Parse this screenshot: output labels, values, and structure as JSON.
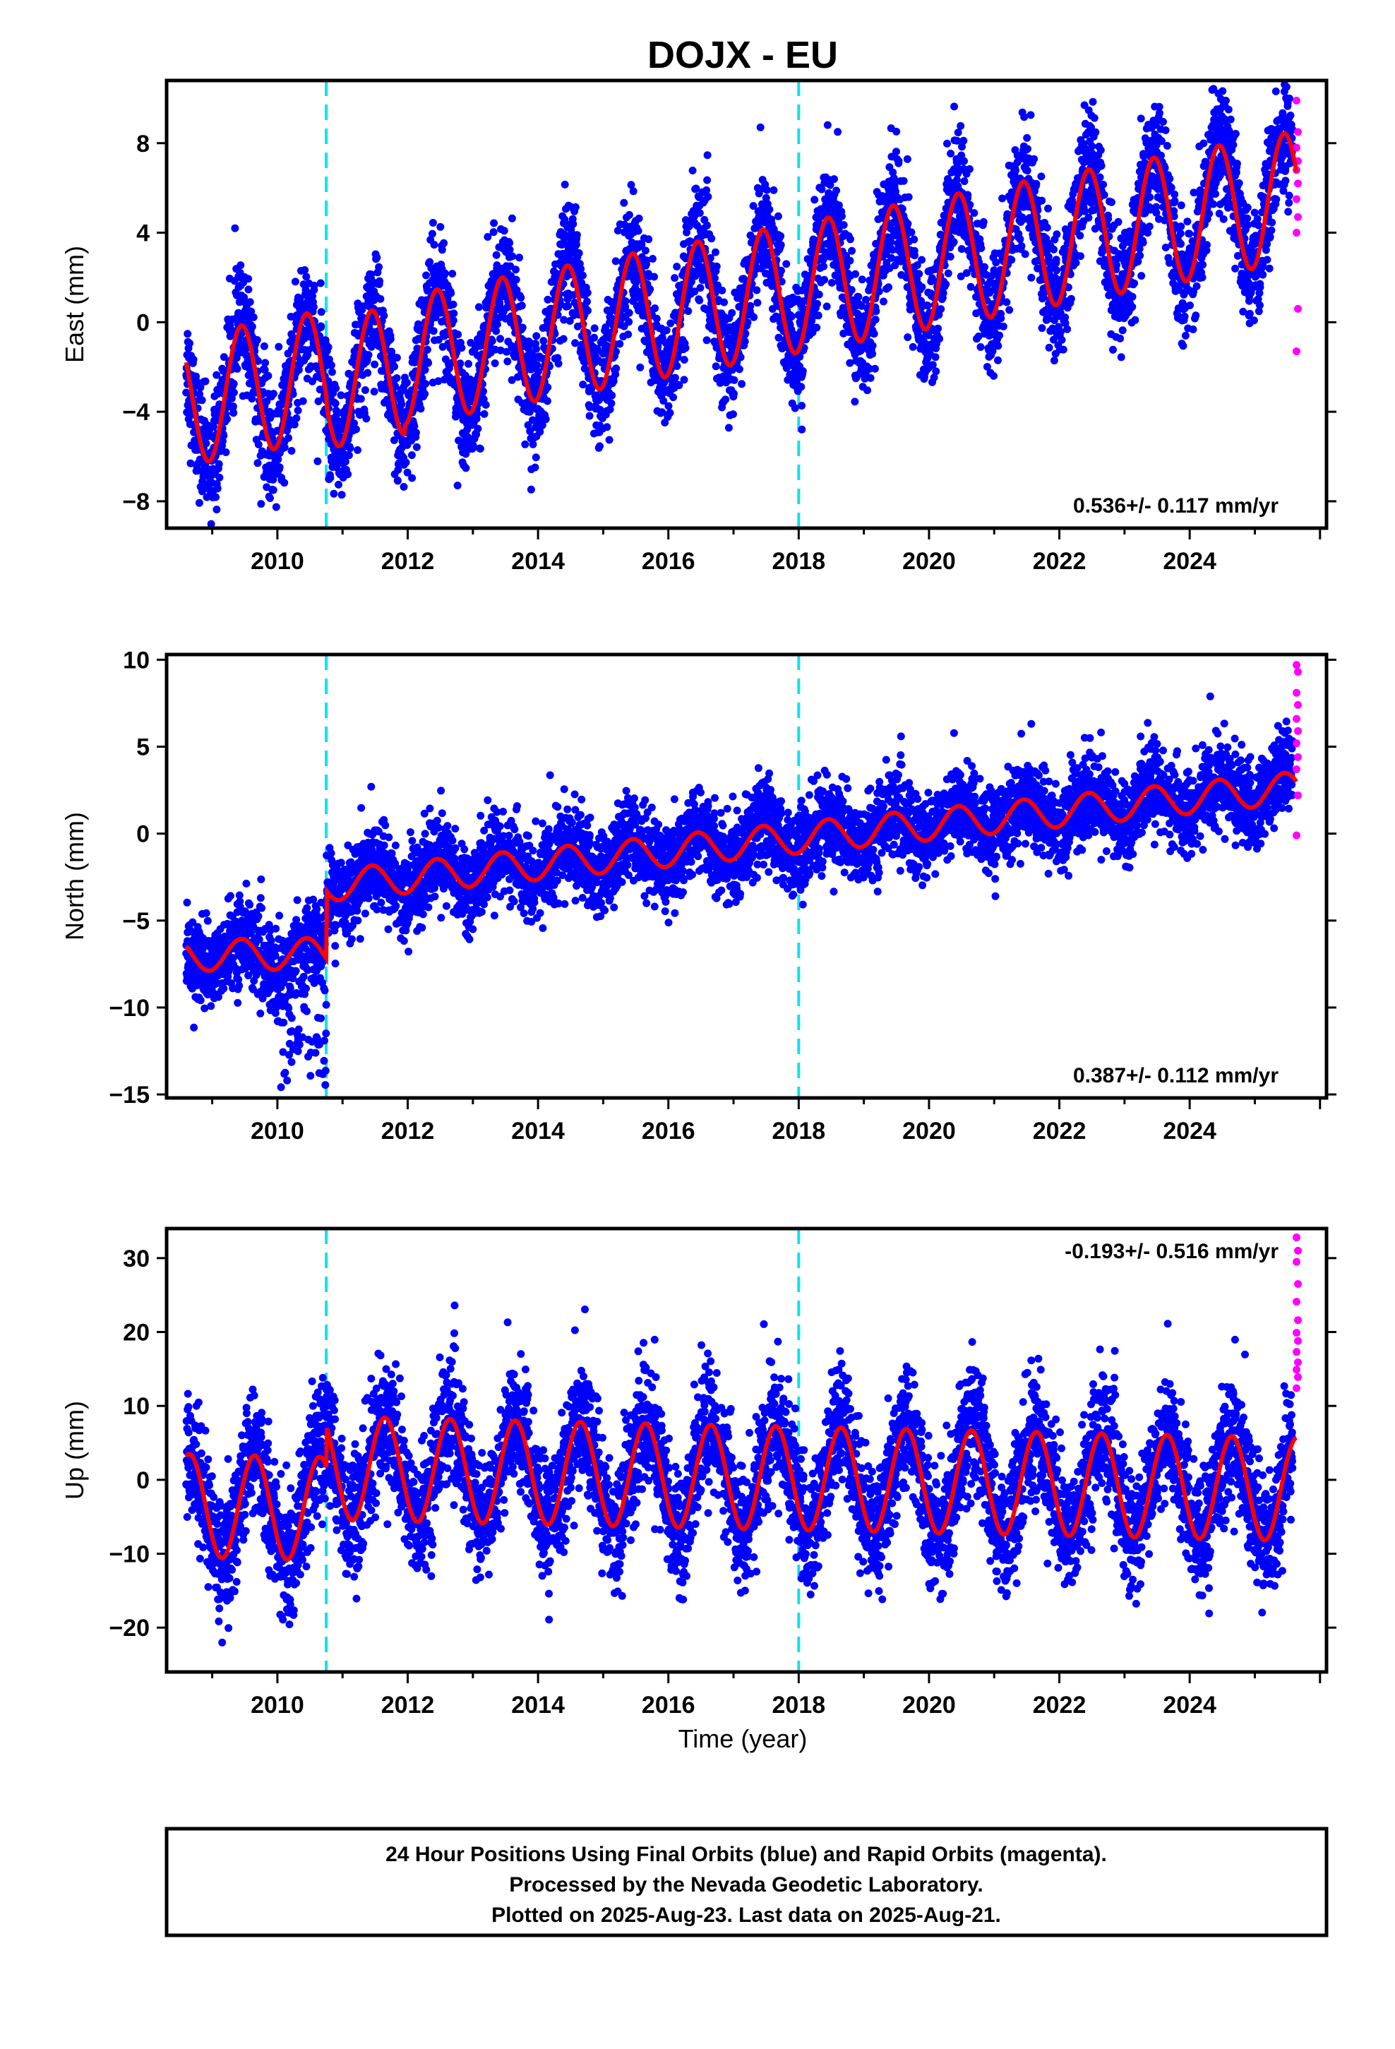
{
  "colors": {
    "final_points": "#0000ff",
    "rapid_points": "#ff00ff",
    "model": "#ff0000",
    "offset_lines": "#00e5ee",
    "frame": "#000000"
  },
  "chart_data": {
    "title": "DOJX - EU",
    "xlabel": "Time (year)",
    "x_ticks": [
      2010,
      2012,
      2014,
      2016,
      2018,
      2020,
      2022,
      2024
    ],
    "xlim": [
      2008.3,
      2026.1
    ],
    "offsets": [
      2010.75,
      2018.0
    ],
    "data_start": 2008.6,
    "data_end": 2025.64,
    "final_end": 2025.58,
    "panels": [
      {
        "type": "scatter",
        "name": "east",
        "ylabel": "East (mm)",
        "ylim": [
          -9.2,
          10.8
        ],
        "yticks": [
          -8,
          -4,
          0,
          4,
          8
        ],
        "rate_text": "0.536+/- 0.117 mm/yr",
        "rate_position": "bottom-right",
        "model": {
          "base": -3.5,
          "trend": 0.536,
          "amplitude": 2.9,
          "period": 1.0,
          "phase_peak": 2009.45,
          "scatter": 1.3
        },
        "rapid_values": [
          9.9,
          8.5,
          7.8,
          7.2,
          6.8,
          6.2,
          5.5,
          4.7,
          4.0,
          0.6,
          -1.3
        ]
      },
      {
        "type": "scatter",
        "name": "north",
        "ylabel": "North (mm)",
        "ylim": [
          -15.2,
          10.3
        ],
        "yticks": [
          -15,
          -10,
          -5,
          0,
          5,
          10
        ],
        "rate_text": "0.387+/- 0.112 mm/yr",
        "rate_position": "bottom-right",
        "model": {
          "base_pre": -7.0,
          "base_post": -3.0,
          "trend": 0.387,
          "amplitude": 0.9,
          "period": 1.0,
          "phase_peak": 2009.45,
          "scatter": 1.2
        },
        "rapid_values": [
          9.7,
          9.3,
          8.1,
          7.4,
          6.6,
          5.9,
          5.2,
          4.4,
          3.7,
          2.2,
          -0.1
        ]
      },
      {
        "type": "scatter",
        "name": "up",
        "ylabel": "Up (mm)",
        "ylim": [
          -26,
          34
        ],
        "yticks": [
          -20,
          -10,
          0,
          10,
          20,
          30
        ],
        "rate_text": "-0.193+/- 0.516 mm/yr",
        "rate_position": "top-right",
        "model": {
          "base": 2.0,
          "trend": -0.193,
          "amplitude": 7.0,
          "period": 1.0,
          "phase_peak": 2009.65,
          "scatter": 4.2
        },
        "rapid_values": [
          32.8,
          31.0,
          29.5,
          26.5,
          24.1,
          21.6,
          19.9,
          18.8,
          17.3,
          15.9,
          14.9,
          13.9,
          12.4
        ]
      }
    ]
  },
  "footer": {
    "line1": "24 Hour Positions Using Final Orbits (blue) and Rapid Orbits (magenta).",
    "line2": "Processed by the Nevada Geodetic Laboratory.",
    "line3": "Plotted on 2025-Aug-23. Last data on 2025-Aug-21."
  }
}
